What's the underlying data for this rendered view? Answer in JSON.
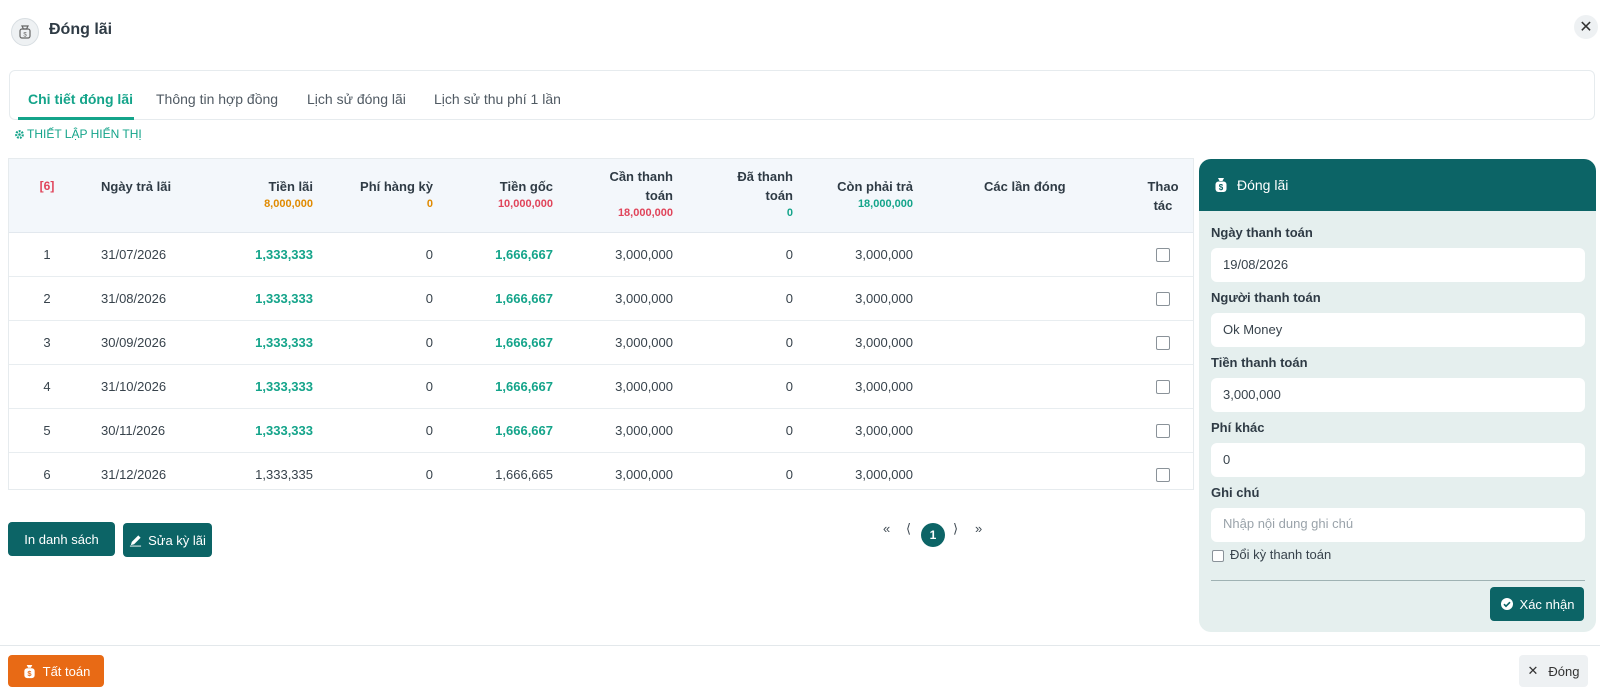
{
  "dialog": {
    "title": "Đóng lãi",
    "icon": "money-bag-icon",
    "close_icon": "close-icon"
  },
  "tabs": [
    {
      "label": "Chi tiết đóng lãi",
      "active": true
    },
    {
      "label": "Thông tin hợp đồng"
    },
    {
      "label": "Lịch sử đóng lãi"
    },
    {
      "label": "Lịch sử thu phí 1 lần"
    }
  ],
  "settings_link": {
    "label": "THIẾT LẬP HIỂN THỊ",
    "icon": "gear-icon"
  },
  "table": {
    "count_badge": "[6]",
    "headers": {
      "date": "Ngày trả lãi",
      "interest": "Tiền lãi",
      "fee": "Phí hàng kỳ",
      "principal": "Tiền gốc",
      "need_l1": "Cần thanh",
      "need_l2": "toán",
      "paid_l1": "Đã thanh",
      "paid_l2": "toán",
      "remain": "Còn phải trả",
      "times": "Các lần đóng",
      "action_l1": "Thao",
      "action_l2": "tác"
    },
    "totals": {
      "interest": "8,000,000",
      "fee": "0",
      "principal": "10,000,000",
      "need": "18,000,000",
      "paid": "0",
      "remain": "18,000,000"
    },
    "rows": [
      {
        "no": "1",
        "date": "31/07/2026",
        "interest": "1,333,333",
        "fee": "0",
        "principal": "1,666,667",
        "need": "3,000,000",
        "paid": "0",
        "remain": "3,000,000"
      },
      {
        "no": "2",
        "date": "31/08/2026",
        "interest": "1,333,333",
        "fee": "0",
        "principal": "1,666,667",
        "need": "3,000,000",
        "paid": "0",
        "remain": "3,000,000"
      },
      {
        "no": "3",
        "date": "30/09/2026",
        "interest": "1,333,333",
        "fee": "0",
        "principal": "1,666,667",
        "need": "3,000,000",
        "paid": "0",
        "remain": "3,000,000"
      },
      {
        "no": "4",
        "date": "31/10/2026",
        "interest": "1,333,333",
        "fee": "0",
        "principal": "1,666,667",
        "need": "3,000,000",
        "paid": "0",
        "remain": "3,000,000"
      },
      {
        "no": "5",
        "date": "30/11/2026",
        "interest": "1,333,333",
        "fee": "0",
        "principal": "1,666,667",
        "need": "3,000,000",
        "paid": "0",
        "remain": "3,000,000"
      },
      {
        "no": "6",
        "date": "31/12/2026",
        "interest": "1,333,335",
        "fee": "0",
        "principal": "1,666,665",
        "need": "3,000,000",
        "paid": "0",
        "remain": "3,000,000"
      }
    ]
  },
  "actions": {
    "print_label": "In danh sách",
    "edit_label": "Sửa kỳ lãi",
    "edit_icon": "pencil-icon"
  },
  "pagination": {
    "first": "«",
    "prev": "⟨",
    "current": "1",
    "next": "⟩",
    "last": "»"
  },
  "panel": {
    "title": "Đóng lãi",
    "icon": "money-bag-icon",
    "date_label": "Ngày thanh toán",
    "date_value": "19/08/2026",
    "payer_label": "Người thanh toán",
    "payer_value": "Ok Money",
    "amount_label": "Tiền thanh toán",
    "amount_value": "3,000,000",
    "other_fee_label": "Phí khác",
    "other_fee_value": "0",
    "note_label": "Ghi chú",
    "note_placeholder": "Nhập nội dung ghi chú",
    "change_period_label": "Đổi kỳ thanh toán",
    "confirm_label": "Xác nhận",
    "confirm_icon": "check-circle-icon"
  },
  "footer": {
    "settle_label": "Tất toán",
    "settle_icon": "money-bag-icon",
    "close_label": "Đóng",
    "close_icon": "close-icon"
  },
  "colors": {
    "primary": "#0c6466",
    "accent": "#14a48a",
    "orange": "#e86a15",
    "total_interest": "#e08a00",
    "total_principal": "#e0445a",
    "panel_bg": "#e5efee"
  }
}
